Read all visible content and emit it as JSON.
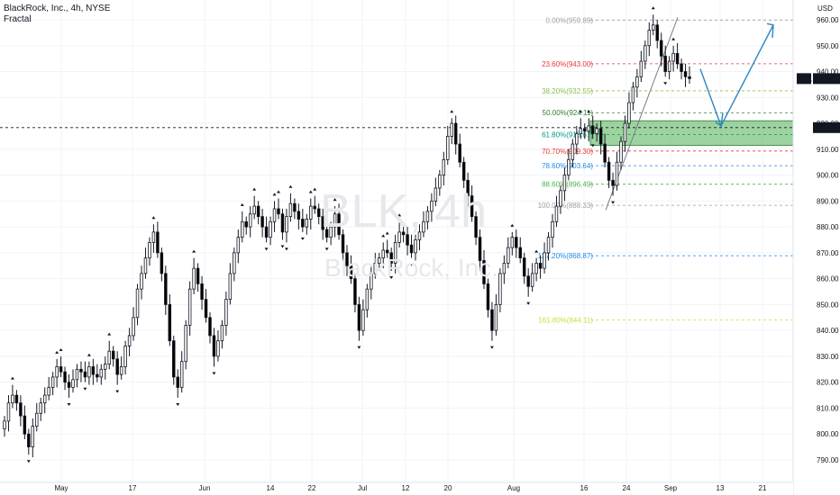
{
  "header": {
    "symbol_line": "BlackRock, Inc., 4h, NYSE",
    "indicator": "Fractal"
  },
  "watermark": {
    "line1": "BLK, 4h",
    "line2": "BlackRock, Inc."
  },
  "price_axis": {
    "currency": "USD",
    "ticks": [
      960,
      950,
      940,
      930,
      920,
      910,
      900,
      890,
      880,
      870,
      860,
      850,
      840,
      830,
      820,
      810,
      800,
      790
    ],
    "labels": [
      "960.00",
      "950.00",
      "940.00",
      "930.00",
      "920.00",
      "910.00",
      "900.00",
      "890.00",
      "880.00",
      "870.00",
      "860.00",
      "850.00",
      "840.00",
      "830.00",
      "820.00",
      "810.00",
      "800.00",
      "790.00"
    ],
    "tag_last": {
      "text": "BLK",
      "value": "937.28",
      "price": 937.28
    },
    "tag_line": {
      "value": "918.35",
      "price": 918.35
    }
  },
  "time_axis": {
    "labels": [
      "May",
      "17",
      "Jun",
      "14",
      "22",
      "Jul",
      "12",
      "20",
      "Aug",
      "16",
      "24",
      "Sep",
      "13",
      "21"
    ]
  },
  "colors": {
    "bull": "#ffffff",
    "bear": "#000000",
    "zone": "#4caf50",
    "grid": "#f0f3fa",
    "projection": "#2e86c1"
  },
  "fib_levels": [
    {
      "label": "0.00%(959.89)",
      "price": 959.89,
      "color": "#9e9e9e"
    },
    {
      "label": "23.60%(943.00)",
      "price": 943.0,
      "color": "#e53935"
    },
    {
      "label": "38.20%(932.55)",
      "price": 932.55,
      "color": "#8bc34a"
    },
    {
      "label": "50.00%(924.11)",
      "price": 924.11,
      "color": "#2e7d32"
    },
    {
      "label": "61.80%(915.67)",
      "price": 915.67,
      "color": "#009688"
    },
    {
      "label": "70.70%(909.30)",
      "price": 909.3,
      "color": "#e53935"
    },
    {
      "label": "78.60%(903.64)",
      "price": 903.64,
      "color": "#1e88e5"
    },
    {
      "label": "88.60%(896.49)",
      "price": 896.49,
      "color": "#4caf50"
    },
    {
      "label": "100.00%(888.33)",
      "price": 888.33,
      "color": "#9e9e9e"
    },
    {
      "label": "127.20%(868.87)",
      "price": 868.87,
      "color": "#1e88e5"
    },
    {
      "label": "161.80%(844.11)",
      "price": 844.11,
      "color": "#cddc39"
    }
  ],
  "chart_data": {
    "type": "candlestick",
    "title": "BlackRock, Inc., 4h, NYSE",
    "ylim": [
      785,
      968
    ],
    "price_line": 918.35,
    "zone": {
      "top": 921.0,
      "bottom": 911.5
    },
    "closes": [
      805,
      812,
      815,
      812,
      807,
      800,
      795,
      803,
      808,
      812,
      815,
      818,
      822,
      826,
      824,
      820,
      818,
      821,
      825,
      824,
      822,
      826,
      823,
      822,
      825,
      827,
      832,
      829,
      823,
      826,
      834,
      838,
      845,
      856,
      862,
      868,
      874,
      878,
      870,
      862,
      850,
      836,
      822,
      818,
      828,
      842,
      856,
      864,
      858,
      852,
      845,
      838,
      830,
      836,
      842,
      852,
      862,
      870,
      876,
      882,
      880,
      885,
      888,
      884,
      880,
      876,
      882,
      887,
      885,
      878,
      884,
      889,
      886,
      883,
      880,
      883,
      888,
      887,
      884,
      879,
      876,
      880,
      885,
      877,
      870,
      865,
      860,
      850,
      840,
      848,
      856,
      862,
      866,
      868,
      871,
      870,
      866,
      874,
      878,
      877,
      873,
      870,
      875,
      878,
      882,
      886,
      890,
      895,
      900,
      906,
      915,
      920,
      912,
      905,
      898,
      892,
      884,
      876,
      867,
      858,
      848,
      840,
      850,
      862,
      866,
      872,
      876,
      872,
      868,
      861,
      857,
      862,
      866,
      864,
      870,
      876,
      882,
      888,
      894,
      900,
      906,
      912,
      916,
      918,
      917,
      919,
      916,
      918,
      912,
      905,
      898,
      896,
      905,
      913,
      920,
      928,
      934,
      938,
      944,
      950,
      956,
      958,
      952,
      946,
      940,
      944,
      947,
      943,
      940,
      938,
      937.28
    ],
    "time_labels": [
      "May",
      "17",
      "Jun",
      "14",
      "22",
      "Jul",
      "12",
      "20",
      "Aug",
      "16",
      "24",
      "Sep",
      "13",
      "21"
    ]
  }
}
